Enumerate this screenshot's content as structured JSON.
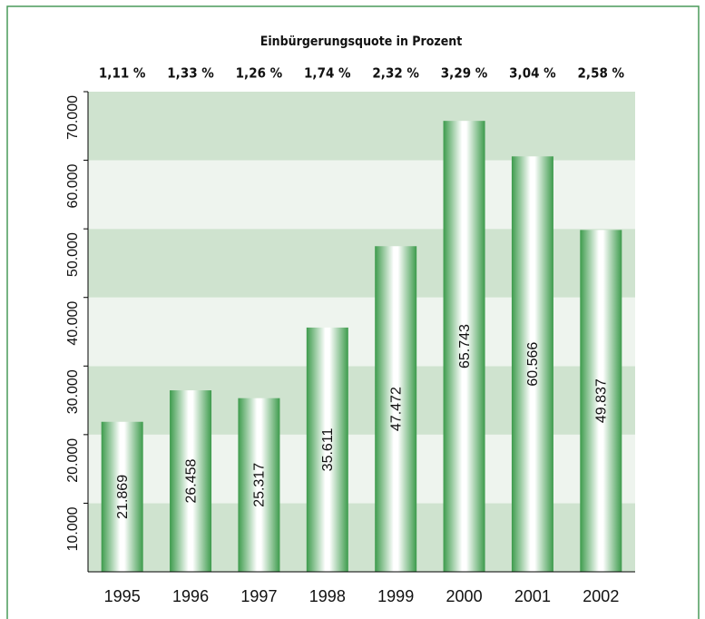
{
  "chart_data": {
    "type": "bar",
    "categories": [
      "1995",
      "1996",
      "1997",
      "1998",
      "1999",
      "2000",
      "2001",
      "2002"
    ],
    "values": [
      21869,
      26458,
      25317,
      35611,
      47472,
      65743,
      60566,
      49837
    ],
    "value_labels": [
      "21.869",
      "26.458",
      "25.317",
      "35.611",
      "47.472",
      "65.743",
      "60.566",
      "49.837"
    ],
    "color": "#3d9b4c",
    "ylim": [
      0,
      70000
    ],
    "yticks": [
      {
        "value": 10000,
        "label": "10.000"
      },
      {
        "value": 20000,
        "label": "20.000"
      },
      {
        "value": 30000,
        "label": "30.000"
      },
      {
        "value": 40000,
        "label": "40.000"
      },
      {
        "value": 50000,
        "label": "50.000"
      },
      {
        "value": 60000,
        "label": "60.000"
      },
      {
        "value": 70000,
        "label": "70.000"
      }
    ],
    "grid": true,
    "rates": {
      "title": "Einbürgerungsquote in Prozent",
      "values": [
        1.11,
        1.33,
        1.26,
        1.74,
        2.32,
        3.29,
        3.04,
        2.58
      ],
      "value_labels": [
        "1,11 %",
        "1,33 %",
        "1,26 %",
        "1,74 %",
        "2,32 %",
        "3,29 %",
        "3,04 %",
        "2,58 %"
      ]
    }
  }
}
